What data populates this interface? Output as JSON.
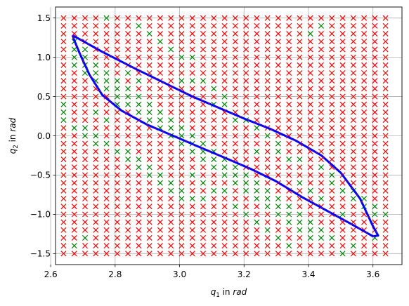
{
  "chart_data": {
    "type": "scatter",
    "xlabel": {
      "var": "q",
      "sub": "1",
      "mid": " in ",
      "unit": "rad"
    },
    "ylabel": {
      "var": "q",
      "sub": "2",
      "mid": " in ",
      "unit": "rad"
    },
    "xlim": [
      2.615,
      3.69
    ],
    "ylim": [
      -1.64,
      1.64
    ],
    "xticks": [
      2.6,
      2.8,
      3.0,
      3.2,
      3.4,
      3.6
    ],
    "xtick_labels": [
      "2.6",
      "2.8",
      "3.0",
      "3.2",
      "3.4",
      "3.6"
    ],
    "yticks": [
      -1.5,
      -1.0,
      -0.5,
      0.0,
      0.5,
      1.0,
      1.5
    ],
    "ytick_labels": [
      "−1.5",
      "−1.0",
      "−0.5",
      "0.0",
      "0.5",
      "1.0",
      "1.5"
    ],
    "grid": true,
    "legend": "none",
    "marker": "x",
    "grid_points": {
      "x_start": 2.64,
      "x_step": 0.0333,
      "x_count": 31,
      "y_start": -1.5,
      "y_step": 0.1,
      "y_count": 31
    },
    "series": [
      {
        "role": "rejected",
        "color": "#ff0000"
      },
      {
        "role": "accepted",
        "color": "#008000"
      }
    ],
    "accepted_cells": [
      [
        1,
        27
      ],
      [
        2,
        26
      ],
      [
        1,
        26
      ],
      [
        1,
        25
      ],
      [
        2,
        25
      ],
      [
        1,
        24
      ],
      [
        2,
        24
      ],
      [
        3,
        24
      ],
      [
        2,
        23
      ],
      [
        3,
        23
      ],
      [
        4,
        23
      ],
      [
        3,
        22
      ],
      [
        4,
        22
      ],
      [
        5,
        22
      ],
      [
        4,
        21
      ],
      [
        5,
        21
      ],
      [
        6,
        21
      ],
      [
        5,
        20
      ],
      [
        6,
        20
      ],
      [
        7,
        20
      ],
      [
        6,
        19
      ],
      [
        7,
        19
      ],
      [
        8,
        19
      ],
      [
        7,
        18
      ],
      [
        8,
        18
      ],
      [
        9,
        18
      ],
      [
        8,
        17
      ],
      [
        9,
        17
      ],
      [
        10,
        17
      ],
      [
        9,
        16
      ],
      [
        10,
        16
      ],
      [
        11,
        16
      ],
      [
        10,
        15
      ],
      [
        11,
        15
      ],
      [
        12,
        15
      ],
      [
        11,
        14
      ],
      [
        12,
        14
      ],
      [
        13,
        14
      ],
      [
        12,
        13
      ],
      [
        13,
        13
      ],
      [
        14,
        13
      ],
      [
        13,
        12
      ],
      [
        14,
        12
      ],
      [
        15,
        12
      ],
      [
        14,
        11
      ],
      [
        15,
        11
      ],
      [
        16,
        11
      ],
      [
        15,
        10
      ],
      [
        16,
        10
      ],
      [
        17,
        10
      ],
      [
        16,
        9
      ],
      [
        17,
        9
      ],
      [
        18,
        9
      ],
      [
        17,
        8
      ],
      [
        18,
        8
      ],
      [
        19,
        8
      ],
      [
        18,
        7
      ],
      [
        19,
        7
      ],
      [
        20,
        7
      ],
      [
        19,
        6
      ],
      [
        20,
        6
      ],
      [
        21,
        6
      ],
      [
        20,
        5
      ],
      [
        21,
        5
      ],
      [
        22,
        5
      ],
      [
        21,
        4
      ],
      [
        22,
        4
      ],
      [
        23,
        4
      ],
      [
        22,
        3
      ],
      [
        23,
        3
      ],
      [
        24,
        3
      ],
      [
        23,
        2
      ],
      [
        24,
        2
      ],
      [
        25,
        2
      ],
      [
        4,
        30
      ],
      [
        7,
        29
      ],
      [
        8,
        28
      ],
      [
        9,
        27
      ],
      [
        10,
        26
      ],
      [
        11,
        25
      ],
      [
        12,
        25
      ],
      [
        11,
        22
      ],
      [
        12,
        22
      ],
      [
        13,
        22
      ],
      [
        0,
        19
      ],
      [
        0,
        18
      ],
      [
        0,
        17
      ],
      [
        1,
        16
      ],
      [
        2,
        16
      ],
      [
        2,
        15
      ],
      [
        3,
        15
      ],
      [
        3,
        14
      ],
      [
        4,
        14
      ],
      [
        5,
        13
      ],
      [
        6,
        13
      ],
      [
        6,
        12
      ],
      [
        7,
        12
      ],
      [
        7,
        11
      ],
      [
        8,
        11
      ],
      [
        8,
        10
      ],
      [
        9,
        10
      ],
      [
        9,
        9
      ],
      [
        10,
        9
      ],
      [
        10,
        8
      ],
      [
        11,
        8
      ],
      [
        11,
        7
      ],
      [
        12,
        7
      ],
      [
        14,
        8
      ],
      [
        15,
        8
      ],
      [
        13,
        7
      ],
      [
        16,
        6
      ],
      [
        17,
        5
      ],
      [
        18,
        4
      ],
      [
        19,
        3
      ],
      [
        20,
        2
      ],
      [
        21,
        1
      ],
      [
        24,
        11
      ],
      [
        25,
        10
      ],
      [
        25,
        9
      ],
      [
        26,
        8
      ],
      [
        27,
        8
      ],
      [
        27,
        7
      ],
      [
        28,
        7
      ],
      [
        28,
        6
      ],
      [
        29,
        6
      ],
      [
        29,
        5
      ],
      [
        30,
        5
      ],
      [
        26,
        5
      ],
      [
        22,
        12
      ],
      [
        20,
        13
      ],
      [
        20,
        14
      ],
      [
        19,
        15
      ],
      [
        18,
        16
      ],
      [
        16,
        17
      ],
      [
        17,
        17
      ],
      [
        14,
        19
      ],
      [
        15,
        19
      ],
      [
        15,
        20
      ],
      [
        14,
        21
      ],
      [
        23,
        28
      ],
      [
        24,
        29
      ],
      [
        4,
        17
      ],
      [
        3,
        18
      ],
      [
        5,
        19
      ],
      [
        6,
        23
      ],
      [
        7,
        22
      ],
      [
        1,
        1
      ],
      [
        2,
        2
      ],
      [
        26,
        0
      ],
      [
        27,
        1
      ],
      [
        29,
        2
      ],
      [
        18,
        13
      ],
      [
        21,
        12
      ],
      [
        13,
        9
      ],
      [
        12,
        10
      ],
      [
        22,
        9
      ],
      [
        23,
        8
      ],
      [
        24,
        7
      ]
    ],
    "ellipse_path": [
      [
        2.668,
        1.28
      ],
      [
        2.76,
        1.07
      ],
      [
        2.86,
        0.86
      ],
      [
        2.96,
        0.66
      ],
      [
        3.04,
        0.5
      ],
      [
        3.12,
        0.36
      ],
      [
        3.2,
        0.22
      ],
      [
        3.28,
        0.09
      ],
      [
        3.36,
        -0.06
      ],
      [
        3.44,
        -0.25
      ],
      [
        3.5,
        -0.47
      ],
      [
        3.56,
        -0.8
      ],
      [
        3.6,
        -1.15
      ],
      [
        3.616,
        -1.27
      ],
      [
        3.6,
        -1.28
      ],
      [
        3.54,
        -1.14
      ],
      [
        3.46,
        -0.96
      ],
      [
        3.38,
        -0.78
      ],
      [
        3.3,
        -0.58
      ],
      [
        3.22,
        -0.42
      ],
      [
        3.14,
        -0.28
      ],
      [
        3.06,
        -0.14
      ],
      [
        2.98,
        0.0
      ],
      [
        2.9,
        0.14
      ],
      [
        2.82,
        0.32
      ],
      [
        2.76,
        0.52
      ],
      [
        2.72,
        0.78
      ],
      [
        2.69,
        1.05
      ],
      [
        2.672,
        1.23
      ],
      [
        2.668,
        1.28
      ]
    ],
    "ellipse_color": "#0000ff",
    "ellipse_highlight_color": "#ff0000"
  }
}
